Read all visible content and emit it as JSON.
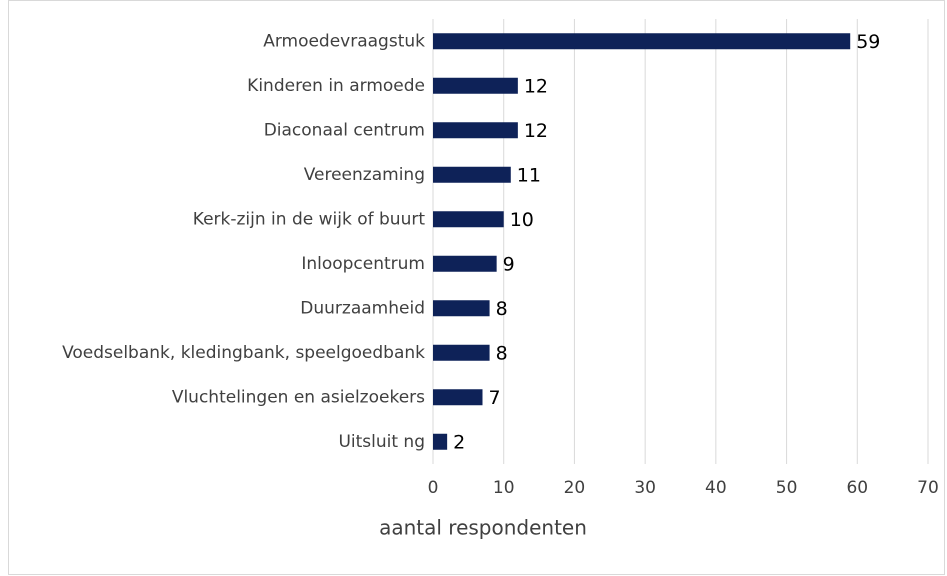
{
  "chart_data": {
    "type": "bar",
    "orientation": "horizontal",
    "categories": [
      "Armoedevraagstuk",
      "Kinderen in armoede",
      "Diaconaal centrum",
      "Vereenzaming",
      "Kerk-zijn in de wijk of buurt",
      "Inloopcentrum",
      "Duurzaamheid",
      "Voedselbank, kledingbank, speelgoedbank",
      "Vluchtelingen en asielzoekers",
      "Uitsluit ng"
    ],
    "values": [
      59,
      12,
      12,
      11,
      10,
      9,
      8,
      8,
      7,
      2
    ],
    "color": "#0e2258",
    "x_label": "aantal respondenten",
    "xlim": [
      0,
      70
    ],
    "xticks": [
      0,
      10,
      20,
      30,
      40,
      50,
      60,
      70
    ],
    "grid": true
  }
}
